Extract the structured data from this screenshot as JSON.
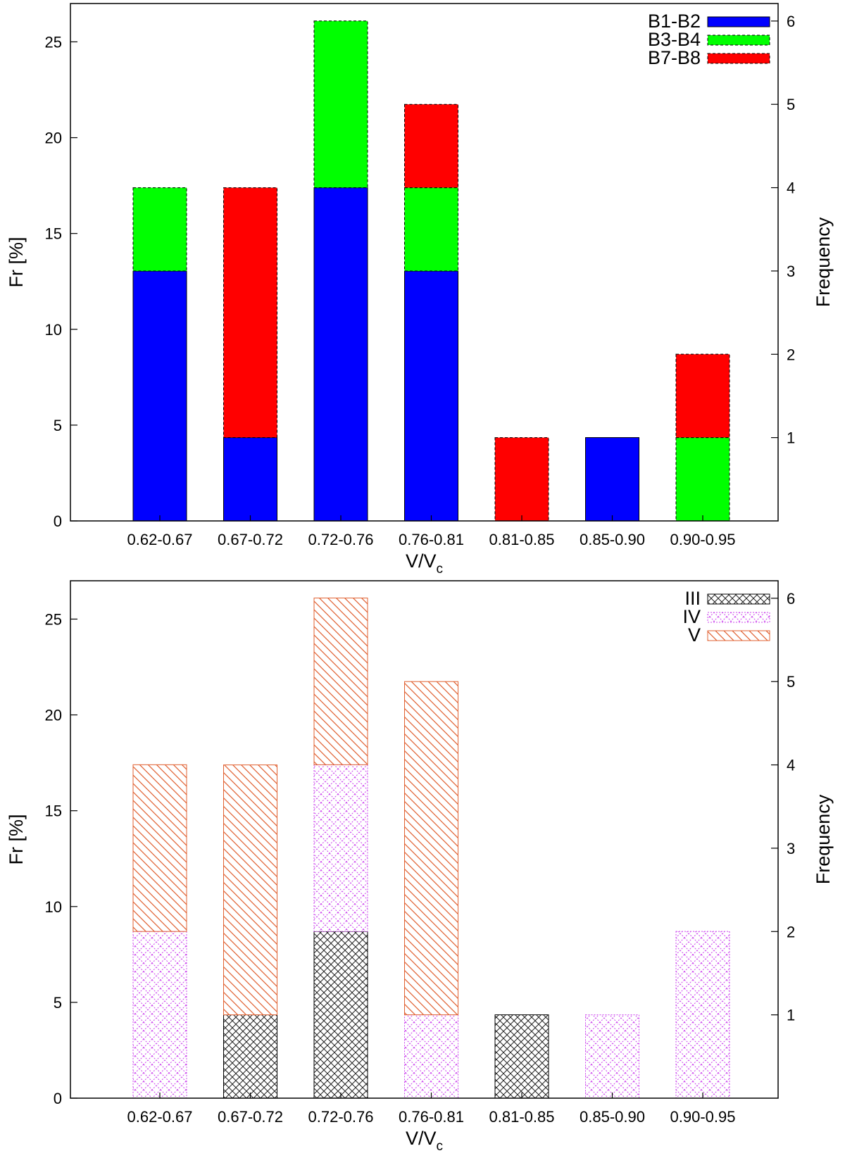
{
  "chart_data": [
    {
      "type": "bar",
      "stacked": true,
      "categories": [
        "0.62-0.67",
        "0.67-0.72",
        "0.72-0.76",
        "0.76-0.81",
        "0.81-0.85",
        "0.85-0.90",
        "0.90-0.95"
      ],
      "xlabel_main": "V/V",
      "xlabel_sub": "c",
      "ylabel": "Fr [%]",
      "y2label": "Frequency",
      "ylim": [
        0,
        27
      ],
      "yticks": [
        0,
        5,
        10,
        15,
        20,
        25
      ],
      "y2ticks": [
        1,
        2,
        3,
        4,
        5,
        6
      ],
      "legend_position": "top-right",
      "series": [
        {
          "name": "B1-B2",
          "color": "#0000ff",
          "pattern": "solid",
          "values": [
            13.04,
            4.35,
            17.39,
            13.04,
            0,
            4.35,
            0
          ]
        },
        {
          "name": "B3-B4",
          "color": "#00ff00",
          "pattern": "solid",
          "values": [
            4.35,
            0,
            8.7,
            4.35,
            0,
            0,
            4.35
          ]
        },
        {
          "name": "B7-B8",
          "color": "#ff0000",
          "pattern": "solid",
          "values": [
            0,
            13.04,
            0,
            4.35,
            4.35,
            0,
            4.35
          ]
        }
      ]
    },
    {
      "type": "bar",
      "stacked": true,
      "categories": [
        "0.62-0.67",
        "0.67-0.72",
        "0.72-0.76",
        "0.76-0.81",
        "0.81-0.85",
        "0.85-0.90",
        "0.90-0.95"
      ],
      "xlabel_main": "V/V",
      "xlabel_sub": "c",
      "ylabel": "Fr [%]",
      "y2label": "Frequency",
      "ylim": [
        0,
        27
      ],
      "yticks": [
        0,
        5,
        10,
        15,
        20,
        25
      ],
      "y2ticks": [
        1,
        2,
        3,
        4,
        5,
        6
      ],
      "legend_position": "top-right",
      "series": [
        {
          "name": "III",
          "color": "#000000",
          "pattern": "crosshatch",
          "values": [
            0,
            4.35,
            8.7,
            0,
            4.35,
            0,
            0
          ]
        },
        {
          "name": "IV",
          "color": "#cc44ee",
          "pattern": "crosshatch-dotted",
          "values": [
            8.7,
            0,
            8.7,
            4.35,
            0,
            4.35,
            8.7
          ]
        },
        {
          "name": "V",
          "color": "#e06030",
          "pattern": "diagonal",
          "values": [
            8.7,
            13.04,
            8.7,
            17.39,
            0,
            0,
            0
          ]
        }
      ]
    }
  ]
}
